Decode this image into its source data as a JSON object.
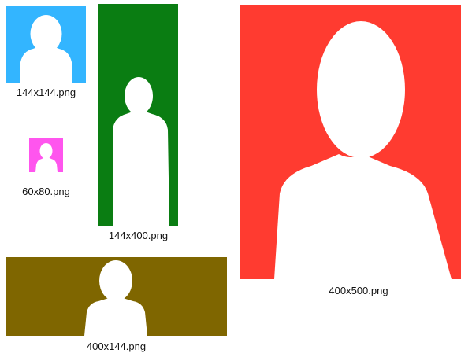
{
  "images": [
    {
      "key": "img_144x144",
      "caption": "144x144.png",
      "color": "#33b5ff"
    },
    {
      "key": "img_144x400",
      "caption": "144x400.png",
      "color": "#0a7d12"
    },
    {
      "key": "img_60x80",
      "caption": "60x80.png",
      "color": "#ff55ee"
    },
    {
      "key": "img_400x500",
      "caption": "400x500.png",
      "color": "#ff3b30"
    },
    {
      "key": "img_400x144",
      "caption": "400x144.png",
      "color": "#7f6600"
    }
  ]
}
